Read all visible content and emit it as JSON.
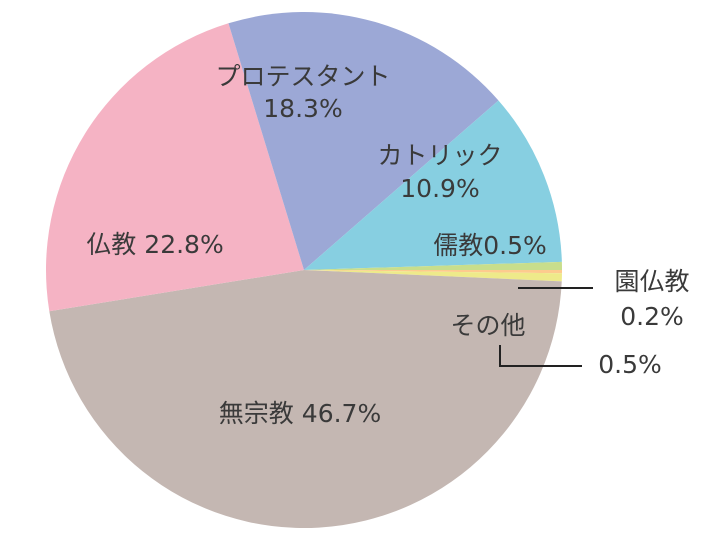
{
  "chart_data": {
    "type": "pie",
    "categories": [
      "園仏教",
      "その他",
      "無宗教",
      "仏教",
      "プロテスタント",
      "カトリック",
      "儒教"
    ],
    "values": [
      0.2,
      0.5,
      46.7,
      22.8,
      18.3,
      10.9,
      0.5
    ],
    "value_labels": [
      "0.2%",
      "0.5%",
      "46.7%",
      "22.8%",
      "18.3%",
      "10.9%",
      "0.5%"
    ],
    "colors": [
      "#fdcb8e",
      "#eeea8a",
      "#c4b7b2",
      "#f5b3c4",
      "#9ca8d6",
      "#87cfe1",
      "#c8de8c"
    ]
  }
}
